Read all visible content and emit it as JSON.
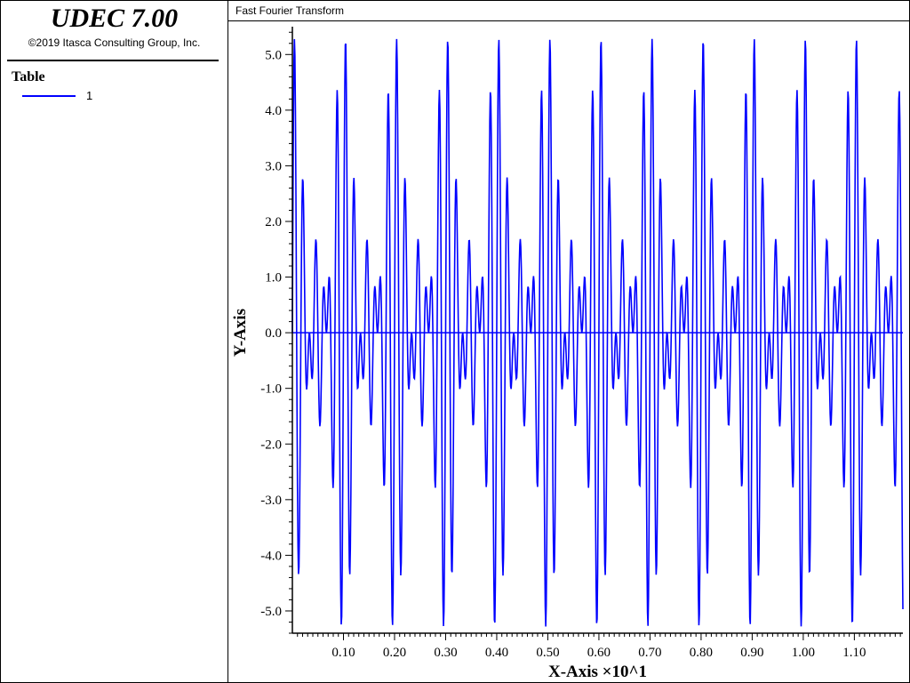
{
  "app": {
    "title": "UDEC 7.00",
    "copyright": "©2019 Itasca Consulting Group, Inc."
  },
  "legend": {
    "title": "Table",
    "items": [
      {
        "label": "1",
        "color": "#0000ff"
      }
    ]
  },
  "colors": {
    "series": "#0000ff",
    "axis": "#000000",
    "background": "#ffffff"
  },
  "chart_data": {
    "type": "line",
    "title": "Fast Fourier Transform",
    "xlabel": "X-Axis ×10^1",
    "ylabel": "Y-Axis",
    "xlim": [
      0.0,
      1.195
    ],
    "ylim": [
      -5.4,
      5.5
    ],
    "x_ticks": [
      "0.10",
      "0.20",
      "0.30",
      "0.40",
      "0.50",
      "0.60",
      "0.70",
      "0.80",
      "0.90",
      "1.00",
      "1.10"
    ],
    "y_ticks": [
      "5.0",
      "4.0",
      "3.0",
      "2.0",
      "1.0",
      "0.0",
      "-1.0",
      "-2.0",
      "-3.0",
      "-4.0",
      "-5.0"
    ],
    "grid": false,
    "series": [
      {
        "name": "1",
        "color": "#0000ff",
        "signal": {
          "x_start": 0.0,
          "x_end": 1.195,
          "points": 1200,
          "components": [
            {
              "amplitude": 1.8,
              "cycles_per_unit": 50
            },
            {
              "amplitude": 1.8,
              "cycles_per_unit": 60
            },
            {
              "amplitude": 1.8,
              "cycles_per_unit": 70
            }
          ]
        }
      }
    ]
  }
}
